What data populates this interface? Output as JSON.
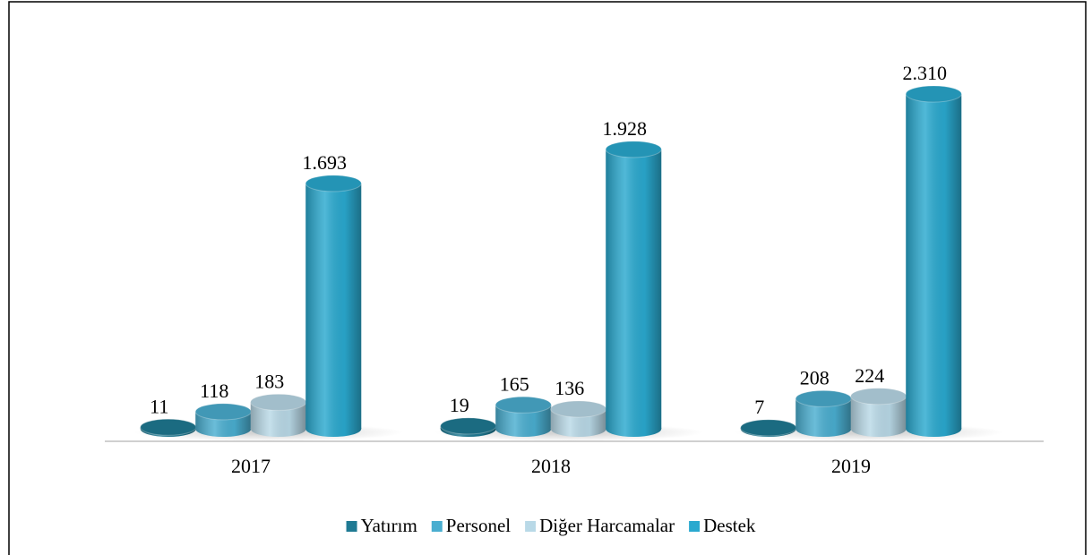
{
  "chart_data": {
    "type": "bar3d",
    "categories": [
      "2017",
      "2018",
      "2019"
    ],
    "series": [
      {
        "name": "Yatırım",
        "color": "#1f7a93",
        "values": [
          11,
          19,
          7
        ],
        "value_labels": [
          "11",
          "19",
          "7"
        ]
      },
      {
        "name": "Personel",
        "color": "#4aaed0",
        "values": [
          118,
          165,
          208
        ],
        "value_labels": [
          "118",
          "165",
          "208"
        ]
      },
      {
        "name": "Diğer Harcamalar",
        "color": "#b9d9e7",
        "values": [
          183,
          136,
          224
        ],
        "value_labels": [
          "183",
          "136",
          "224"
        ]
      },
      {
        "name": "Destek",
        "color": "#2aa9cf",
        "values": [
          1693,
          1928,
          2310
        ],
        "value_labels": [
          "1.693",
          "1.928",
          "2.310"
        ]
      }
    ],
    "legend": "bottom"
  }
}
